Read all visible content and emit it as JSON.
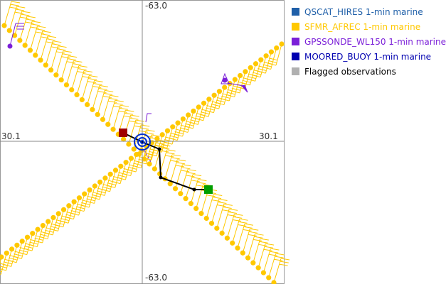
{
  "axes": {
    "top_label": "-63.0",
    "bottom_label": "-63.0",
    "left_label": "30.1",
    "right_label": "30.1"
  },
  "legend": [
    {
      "label": "QSCAT_HIRES 1-min marine",
      "color": "#1f5fa8"
    },
    {
      "label": "SFMR_AFREC 1-min marine",
      "color": "#ffc800"
    },
    {
      "label": "GPSSONDE_WL150 1-min marine",
      "color": "#7b1fd8"
    },
    {
      "label": "MOORED_BUOY 1-min marine",
      "color": "#0000b0"
    },
    {
      "label": "Flagged observations",
      "color": "#b0b0b0"
    }
  ],
  "colors": {
    "track": "#000000",
    "start": "#009e00",
    "end": "#a00000",
    "center": "#0030d0"
  }
}
